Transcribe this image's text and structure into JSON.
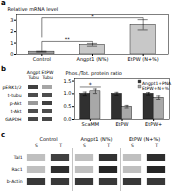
{
  "chart_data": [
    {
      "type": "bar",
      "title": "a",
      "categories": [
        "Control",
        "Angpt1 (N%)",
        "EtPW (N+%)"
      ],
      "values": [
        0.25,
        0.85,
        2.6
      ],
      "errors": [
        0.04,
        0.12,
        0.45
      ],
      "colors": [
        "#a0a0a0",
        "#c8c8c8",
        "#c8c8c8"
      ],
      "ylabel": "Relative mRNA level",
      "ylim": [
        0,
        3.5
      ],
      "yticks": [
        0,
        1,
        2,
        3
      ],
      "annotations": [
        {
          "text": "**",
          "from": "Control",
          "to": "Angpt1 (N%)"
        },
        {
          "text": "*",
          "from": "Control",
          "to": "EtPW (N+%)"
        }
      ]
    },
    {
      "type": "heatmap",
      "title": "b",
      "x": [
        "Angpt\nTubu",
        "EtPW\nTubu"
      ],
      "y": [
        "pERK1/2",
        "t-tubu",
        "p-Akt",
        "t-Akt",
        "GAPDH"
      ],
      "values": [
        [
          0.25,
          0.65
        ],
        [
          0.3,
          0.3
        ],
        [
          0.6,
          0.25
        ],
        [
          0.3,
          0.3
        ],
        [
          0.28,
          0.28
        ]
      ]
    },
    {
      "type": "bar",
      "categories": [
        "ScaMM",
        "EtPW",
        "EtPW+"
      ],
      "series": [
        {
          "name": "Angpt1+PNA",
          "color": "#303030",
          "values": [
            1.0,
            1.0,
            1.0
          ],
          "errors": [
            0.07,
            0.06,
            0.05
          ]
        },
        {
          "name": "EtPW+N+%",
          "color": "#a8a8a8",
          "values": [
            1.1,
            0.5,
            0.85
          ],
          "errors": [
            0.09,
            0.05,
            0.07
          ]
        }
      ],
      "ylabel": "Phos./Tot. protein ratio",
      "ylim": [
        0,
        1.6
      ],
      "yticks": [
        {
          "value": 0,
          "label": "0.0"
        },
        0.5,
        {
          "value": 1,
          "label": "1.0"
        },
        1.5
      ],
      "legend": "upper right",
      "annotations": [
        {
          "text": "*",
          "category": "ScaMM"
        }
      ]
    },
    {
      "type": "heatmap",
      "title": "c",
      "x": [
        "S",
        "T",
        "S",
        "T",
        "S",
        "T"
      ],
      "x_groups": [
        "Control",
        "Angpt1 (N%)",
        "EtPW (N+%)"
      ],
      "y": [
        "Tal1",
        "Rac1",
        "b-Actin"
      ],
      "values": [
        [
          0.75,
          0.25,
          0.75,
          0.2,
          0.75,
          0.18
        ],
        [
          0.75,
          0.18,
          0.75,
          0.15,
          0.75,
          0.15
        ],
        [
          0.22,
          0.22,
          0.22,
          0.22,
          0.22,
          0.22
        ]
      ]
    }
  ]
}
